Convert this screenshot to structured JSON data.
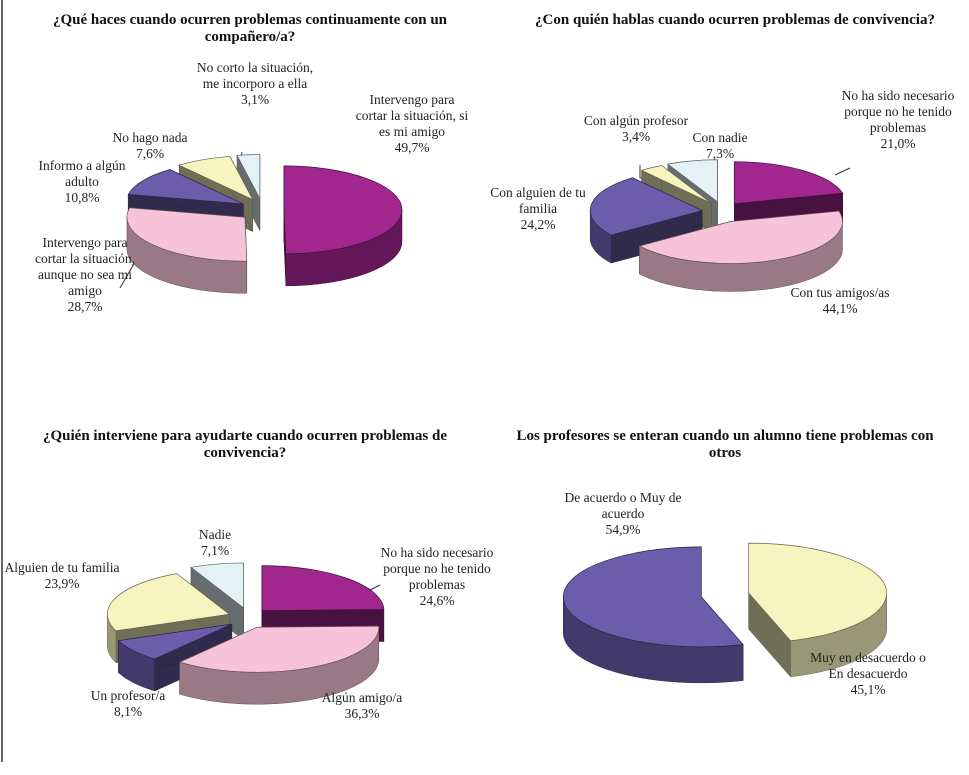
{
  "chart_data": [
    {
      "type": "pie",
      "title": "¿Qué haces cuando ocurren problemas continuamente con un compañero/a?",
      "categories": [
        "Intervengo para cortar la situación, si es mi amigo",
        "Intervengo para cortar la situación, aunque no sea mi amigo",
        "Informo a algún adulto",
        "No hago nada",
        "No corto la situación, me incorporo a ella"
      ],
      "values": [
        49.7,
        28.7,
        10.8,
        7.6,
        3.1
      ],
      "value_labels": [
        "49,7%",
        "28,7%",
        "10,8%",
        "7,6%",
        "3,1%"
      ],
      "colors": [
        "#a1278f",
        "#f6c3d8",
        "#6b5dac",
        "#f7f5bf",
        "#e4f2f5"
      ]
    },
    {
      "type": "pie",
      "title": "¿Con quién hablas cuando ocurren problemas de convivencia?",
      "categories": [
        "No ha sido necesario porque no he tenido problemas",
        "Con tus amigos/as",
        "Con alguien de tu familia",
        "Con algún profesor",
        "Con nadie"
      ],
      "values": [
        21.0,
        44.1,
        24.2,
        3.4,
        7.3
      ],
      "value_labels": [
        "21,0%",
        "44,1%",
        "24,2%",
        "3,4%",
        "7,3%"
      ],
      "colors": [
        "#a1278f",
        "#f6c3d8",
        "#6b5dac",
        "#f7f5bf",
        "#e4f2f5"
      ]
    },
    {
      "type": "pie",
      "title": "¿Quién interviene para ayudarte cuando ocurren problemas de convivencia?",
      "categories": [
        "No ha sido necesario porque no he tenido problemas",
        "Algún amigo/a",
        "Un profesor/a",
        "Alguien de tu familia",
        "Nadie"
      ],
      "values": [
        24.6,
        36.3,
        8.1,
        23.9,
        7.1
      ],
      "value_labels": [
        "24,6%",
        "36,3%",
        "8,1%",
        "23,9%",
        "7,1%"
      ],
      "colors": [
        "#a1278f",
        "#f6c3d8",
        "#6b5dac",
        "#f7f5bf",
        "#e4f2f5"
      ]
    },
    {
      "type": "pie",
      "title": "Los profesores se enteran cuando un alumno tiene problemas con otros",
      "categories": [
        "Muy en desacuerdo o En desacuerdo",
        "De acuerdo o Muy de acuerdo"
      ],
      "values": [
        45.1,
        54.9
      ],
      "value_labels": [
        "45,1%",
        "54,9%"
      ],
      "colors": [
        "#f7f5bf",
        "#6b5dac"
      ]
    }
  ]
}
